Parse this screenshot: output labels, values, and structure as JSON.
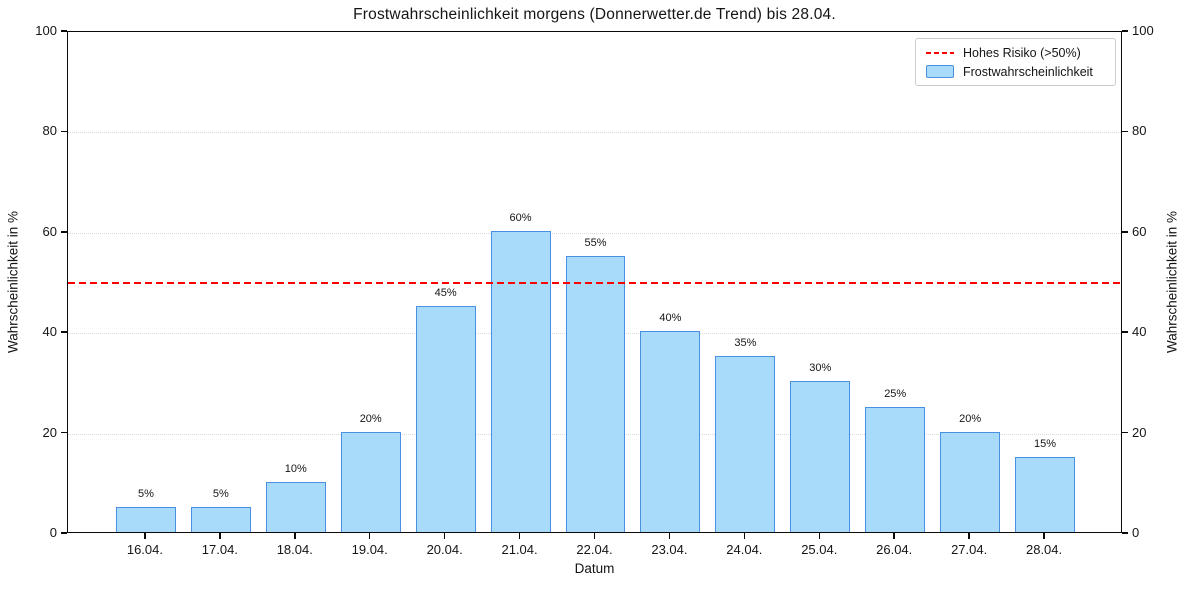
{
  "chart_data": {
    "type": "bar",
    "title": "Frostwahrscheinlichkeit morgens (Donnerwetter.de Trend) bis 28.04.",
    "xlabel": "Datum",
    "ylabel": "Wahrscheinlichkeit in %",
    "categories": [
      "16.04.",
      "17.04.",
      "18.04.",
      "19.04.",
      "20.04.",
      "21.04.",
      "22.04.",
      "23.04.",
      "24.04.",
      "25.04.",
      "26.04.",
      "27.04.",
      "28.04."
    ],
    "values": [
      5,
      5,
      10,
      20,
      45,
      60,
      55,
      40,
      35,
      30,
      25,
      20,
      15
    ],
    "bar_labels": [
      "5%",
      "5%",
      "10%",
      "20%",
      "45%",
      "60%",
      "55%",
      "40%",
      "35%",
      "30%",
      "25%",
      "20%",
      "15%"
    ],
    "ylim": [
      0,
      100
    ],
    "yticks": [
      0,
      20,
      40,
      60,
      80,
      100
    ],
    "grid": {
      "axis": "y",
      "style": "dotted",
      "color": "#d9d9d9"
    },
    "threshold": {
      "value": 50,
      "style": "dashed",
      "color": "#ff0000"
    },
    "legend": {
      "position": "upper-right",
      "items": [
        {
          "label": "Hohes Risiko (>50%)",
          "swatch": "red-dashed-line"
        },
        {
          "label": "Frostwahrscheinlichkeit",
          "swatch": "light-blue-bar"
        }
      ]
    },
    "colors": {
      "bar_fill": "#a8dbfa",
      "bar_edge": "#4a90e2",
      "threshold": "#ff0000",
      "spine": "#0a0a0a",
      "grid": "#d9d9d9"
    }
  }
}
